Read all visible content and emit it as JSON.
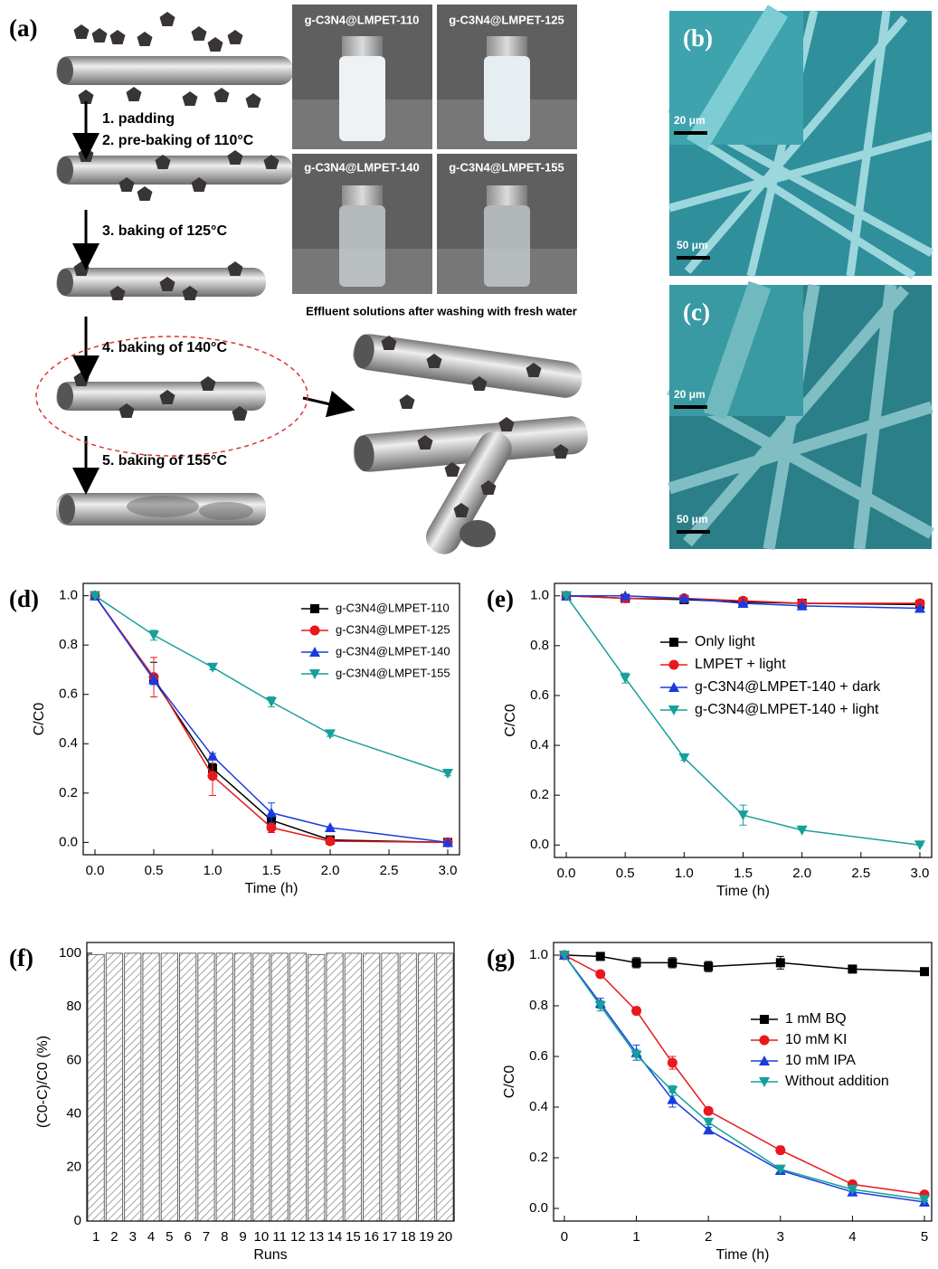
{
  "schematic": {
    "label": "(a)",
    "steps": [
      "1. padding",
      "2. pre-baking of 110°C",
      "3. baking of 125°C",
      "4. baking of 140°C",
      "5. baking of 155°C"
    ]
  },
  "photos": {
    "labels": [
      "g-C3N4@LMPET-110",
      "g-C3N4@LMPET-125",
      "g-C3N4@LMPET-140",
      "g-C3N4@LMPET-155"
    ],
    "caption": "Effluent solutions after washing with fresh water"
  },
  "sem": [
    {
      "label": "(b)",
      "scale_bars": [
        "20 μm",
        "50 μm"
      ]
    },
    {
      "label": "(c)",
      "scale_bars": [
        "20 μm",
        "50 μm"
      ]
    }
  ],
  "chart_data": [
    {
      "type": "line",
      "label": "(d)",
      "x_label": "Time (h)",
      "y_label": "C/C0",
      "x": [
        0,
        0.5,
        1,
        1.5,
        2,
        3
      ],
      "series": [
        {
          "name": "g-C3N4@LMPET-110",
          "color": "#000000",
          "marker": "square",
          "values": [
            1,
            0.66,
            0.3,
            0.09,
            0.01,
            0.0
          ],
          "errors": [
            0,
            0.07,
            0.02,
            0.01,
            0,
            0
          ]
        },
        {
          "name": "g-C3N4@LMPET-125",
          "color": "#e8181c",
          "marker": "circle",
          "values": [
            1,
            0.67,
            0.27,
            0.06,
            0.005,
            0.0
          ],
          "errors": [
            0,
            0.08,
            0.08,
            0.02,
            0,
            0
          ]
        },
        {
          "name": "g-C3N4@LMPET-140",
          "color": "#1a3be0",
          "marker": "triangle-up",
          "values": [
            1,
            0.66,
            0.35,
            0.12,
            0.06,
            0.0
          ],
          "errors": [
            0,
            0.02,
            0.01,
            0.04,
            0,
            0
          ]
        },
        {
          "name": "g-C3N4@LMPET-155",
          "color": "#16a09a",
          "marker": "triangle-down",
          "values": [
            1,
            0.84,
            0.71,
            0.57,
            0.44,
            0.28
          ],
          "errors": [
            0,
            0.02,
            0.01,
            0.02,
            0.01,
            0.01
          ]
        }
      ],
      "xlim": [
        -0.1,
        3.1
      ],
      "ylim": [
        -0.05,
        1.05
      ],
      "xticks": [
        {
          "value": 0,
          "label": "0.0"
        },
        0.5,
        {
          "value": 1,
          "label": "1.0"
        },
        1.5,
        {
          "value": 2,
          "label": "2.0"
        },
        2.5,
        {
          "value": 3,
          "label": "3.0"
        }
      ],
      "yticks": [
        {
          "value": 0,
          "label": "0.0"
        },
        0.2,
        0.4,
        0.6,
        0.8,
        {
          "value": 1,
          "label": "1.0"
        }
      ],
      "legend": "upper right"
    },
    {
      "type": "line",
      "label": "(e)",
      "x_label": "Time (h)",
      "y_label": "C/C0",
      "x": [
        0,
        0.5,
        1,
        1.5,
        2,
        3
      ],
      "series": [
        {
          "name": "Only light",
          "color": "#000000",
          "marker": "square",
          "values": [
            1,
            0.99,
            0.985,
            0.975,
            0.97,
            0.965
          ],
          "errors": [
            0,
            0,
            0,
            0,
            0,
            0
          ]
        },
        {
          "name": "LMPET + light",
          "color": "#e8181c",
          "marker": "circle",
          "values": [
            1,
            0.99,
            0.99,
            0.98,
            0.97,
            0.97
          ],
          "errors": [
            0,
            0,
            0,
            0,
            0,
            0
          ]
        },
        {
          "name": "g-C3N4@LMPET-140 + dark",
          "color": "#1a3be0",
          "marker": "triangle-up",
          "values": [
            1,
            1.0,
            0.99,
            0.97,
            0.96,
            0.95
          ],
          "errors": [
            0,
            0,
            0,
            0,
            0,
            0
          ]
        },
        {
          "name": "g-C3N4@LMPET-140 + light",
          "color": "#16a09a",
          "marker": "triangle-down",
          "values": [
            1,
            0.67,
            0.35,
            0.12,
            0.06,
            0.0
          ],
          "errors": [
            0,
            0.02,
            0.01,
            0.04,
            0,
            0
          ]
        }
      ],
      "xlim": [
        -0.1,
        3.1
      ],
      "ylim": [
        -0.05,
        1.05
      ],
      "xticks": [
        {
          "value": 0,
          "label": "0.0"
        },
        0.5,
        {
          "value": 1,
          "label": "1.0"
        },
        1.5,
        {
          "value": 2,
          "label": "2.0"
        },
        2.5,
        {
          "value": 3,
          "label": "3.0"
        }
      ],
      "yticks": [
        {
          "value": 0,
          "label": "0.0"
        },
        0.2,
        0.4,
        0.6,
        0.8,
        {
          "value": 1,
          "label": "1.0"
        }
      ],
      "legend": "upper right"
    },
    {
      "type": "bar",
      "label": "(f)",
      "x_label": "Runs",
      "y_label": "(C0-C)/C0 (%)",
      "categories": [
        "1",
        "2",
        "3",
        "4",
        "5",
        "6",
        "7",
        "8",
        "9",
        "10",
        "11",
        "12",
        "13",
        "14",
        "15",
        "16",
        "17",
        "18",
        "19",
        "20"
      ],
      "values": [
        99.5,
        100,
        100,
        100,
        100,
        100,
        100,
        100,
        100,
        100,
        100,
        100,
        99.5,
        100,
        100,
        100,
        100,
        100,
        100,
        100
      ],
      "color": "#666666",
      "hatch": true,
      "ylim": [
        0,
        104
      ],
      "yticks": [
        0,
        20,
        40,
        60,
        80,
        100
      ]
    },
    {
      "type": "line",
      "label": "(g)",
      "x_label": "Time (h)",
      "y_label": "C/C0",
      "x": [
        0,
        0.5,
        1,
        1.5,
        2,
        3,
        4,
        5
      ],
      "series": [
        {
          "name": "1 mM BQ",
          "color": "#000000",
          "marker": "square",
          "values": [
            1,
            0.995,
            0.97,
            0.97,
            0.955,
            0.97,
            0.945,
            0.935
          ],
          "errors": [
            0,
            0.005,
            0.02,
            0.02,
            0.02,
            0.025,
            0.015,
            0.01
          ]
        },
        {
          "name": "10 mM KI",
          "color": "#e8181c",
          "marker": "circle",
          "values": [
            1,
            0.925,
            0.78,
            0.575,
            0.385,
            0.23,
            0.095,
            0.055
          ],
          "errors": [
            0,
            0.005,
            0.015,
            0.025,
            0.01,
            0.015,
            0.005,
            0.005
          ]
        },
        {
          "name": "10 mM IPA",
          "color": "#1a3be0",
          "marker": "triangle-up",
          "values": [
            1,
            0.81,
            0.615,
            0.43,
            0.31,
            0.15,
            0.065,
            0.025
          ],
          "errors": [
            0,
            0.02,
            0.03,
            0.03,
            0.01,
            0.01,
            0.005,
            0.005
          ]
        },
        {
          "name": "Without addition",
          "color": "#16a09a",
          "marker": "triangle-down",
          "values": [
            1,
            0.8,
            0.605,
            0.465,
            0.34,
            0.155,
            0.075,
            0.035
          ],
          "errors": [
            0,
            0.02,
            0.02,
            0.02,
            0.01,
            0.01,
            0.005,
            0.005
          ]
        }
      ],
      "xlim": [
        -0.15,
        5.1
      ],
      "ylim": [
        -0.05,
        1.05
      ],
      "xticks": [
        0,
        1,
        2,
        3,
        4,
        5
      ],
      "yticks": [
        {
          "value": 0,
          "label": "0.0"
        },
        0.2,
        0.4,
        0.6,
        0.8,
        {
          "value": 1,
          "label": "1.0"
        }
      ],
      "legend": "center right"
    }
  ]
}
